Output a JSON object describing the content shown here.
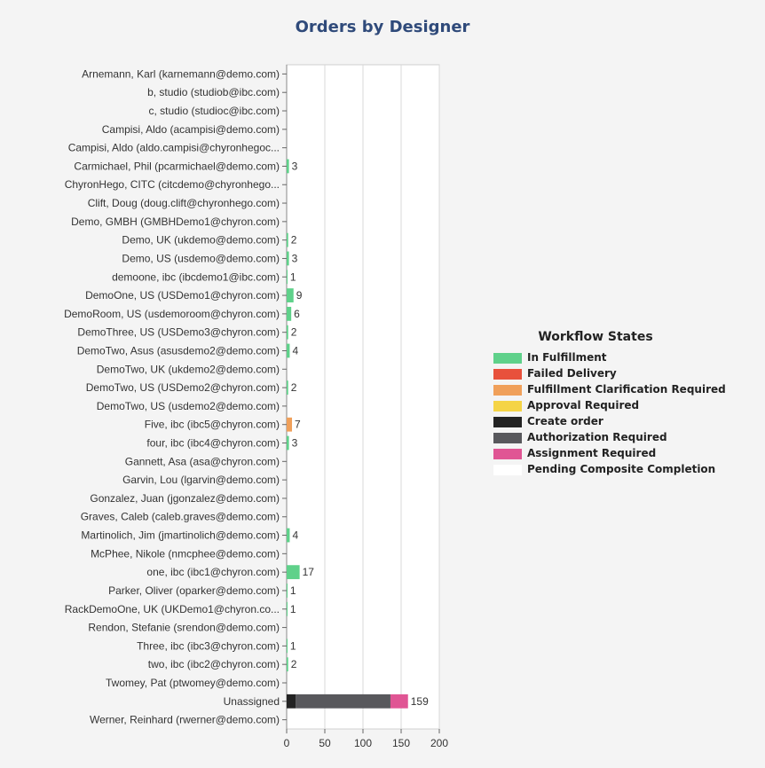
{
  "chart_data": {
    "type": "bar",
    "stacked": true,
    "orientation": "horizontal",
    "title": "Orders by Designer",
    "xlim": [
      0,
      200
    ],
    "xticks": [
      0,
      50,
      100,
      150,
      200
    ],
    "grid": true,
    "legend_placement": "right",
    "legend_title": "Workflow States",
    "categories": [
      "Arnemann, Karl (karnemann@demo.com)",
      "b, studio (studiob@ibc.com)",
      "c, studio (studioc@ibc.com)",
      "Campisi, Aldo (acampisi@demo.com)",
      "Campisi, Aldo (aldo.campisi@chyronhegoc...",
      "Carmichael, Phil (pcarmichael@demo.com)",
      "ChyronHego, CITC (citcdemo@chyronhego...",
      "Clift, Doug (doug.clift@chyronhego.com)",
      "Demo, GMBH (GMBHDemo1@chyron.com)",
      "Demo, UK (ukdemo@demo.com)",
      "Demo, US (usdemo@demo.com)",
      "demoone, ibc (ibcdemo1@ibc.com)",
      "DemoOne, US (USDemo1@chyron.com)",
      "DemoRoom, US (usdemoroom@chyron.com)",
      "DemoThree, US (USDemo3@chyron.com)",
      "DemoTwo, Asus (asusdemo2@demo.com)",
      "DemoTwo, UK (ukdemo2@demo.com)",
      "DemoTwo, US (USDemo2@chyron.com)",
      "DemoTwo, US (usdemo2@demo.com)",
      "Five, ibc (ibc5@chyron.com)",
      "four, ibc (ibc4@chyron.com)",
      "Gannett, Asa (asa@chyron.com)",
      "Garvin, Lou (lgarvin@demo.com)",
      "Gonzalez, Juan (jgonzalez@demo.com)",
      "Graves, Caleb (caleb.graves@demo.com)",
      "Martinolich, Jim (jmartinolich@demo.com)",
      "McPhee, Nikole (nmcphee@demo.com)",
      "one, ibc (ibc1@chyron.com)",
      "Parker, Oliver (oparker@demo.com)",
      "RackDemoOne, UK (UKDemo1@chyron.co...",
      "Rendon, Stefanie (srendon@demo.com)",
      "Three, ibc (ibc3@chyron.com)",
      "two, ibc (ibc2@chyron.com)",
      "Twomey, Pat (ptwomey@demo.com)",
      "Unassigned",
      "Werner, Reinhard (rwerner@demo.com)"
    ],
    "totals": [
      0,
      0,
      0,
      0,
      0,
      3,
      0,
      0,
      0,
      2,
      3,
      1,
      9,
      6,
      2,
      4,
      0,
      2,
      0,
      7,
      3,
      0,
      0,
      0,
      0,
      4,
      0,
      17,
      1,
      1,
      0,
      1,
      2,
      0,
      159,
      0
    ],
    "series": [
      {
        "name": "In Fulfillment",
        "color": "#5fd18a",
        "values": [
          0,
          0,
          0,
          0,
          0,
          3,
          0,
          0,
          0,
          2,
          3,
          1,
          9,
          6,
          2,
          4,
          0,
          2,
          0,
          0,
          3,
          0,
          0,
          0,
          0,
          4,
          0,
          17,
          1,
          1,
          0,
          1,
          2,
          0,
          0,
          0
        ]
      },
      {
        "name": "Failed Delivery",
        "color": "#e8513c",
        "values": [
          0,
          0,
          0,
          0,
          0,
          0,
          0,
          0,
          0,
          0,
          0,
          0,
          0,
          0,
          0,
          0,
          0,
          0,
          0,
          0,
          0,
          0,
          0,
          0,
          0,
          0,
          0,
          0,
          0,
          0,
          0,
          0,
          0,
          0,
          0,
          0
        ]
      },
      {
        "name": "Fulfillment Clarification Required",
        "color": "#f0a05a",
        "values": [
          0,
          0,
          0,
          0,
          0,
          0,
          0,
          0,
          0,
          0,
          0,
          0,
          0,
          0,
          0,
          0,
          0,
          0,
          0,
          7,
          0,
          0,
          0,
          0,
          0,
          0,
          0,
          0,
          0,
          0,
          0,
          0,
          0,
          0,
          0,
          0
        ]
      },
      {
        "name": "Approval Required",
        "color": "#f5d445",
        "values": [
          0,
          0,
          0,
          0,
          0,
          0,
          0,
          0,
          0,
          0,
          0,
          0,
          0,
          0,
          0,
          0,
          0,
          0,
          0,
          0,
          0,
          0,
          0,
          0,
          0,
          0,
          0,
          0,
          0,
          0,
          0,
          0,
          0,
          0,
          0,
          0
        ]
      },
      {
        "name": "Create order",
        "color": "#232323",
        "values": [
          0,
          0,
          0,
          0,
          0,
          0,
          0,
          0,
          0,
          0,
          0,
          0,
          0,
          0,
          0,
          0,
          0,
          0,
          0,
          0,
          0,
          0,
          0,
          0,
          0,
          0,
          0,
          0,
          0,
          0,
          0,
          0,
          0,
          0,
          12,
          0
        ]
      },
      {
        "name": "Authorization Required",
        "color": "#58585c",
        "values": [
          0,
          0,
          0,
          0,
          0,
          0,
          0,
          0,
          0,
          0,
          0,
          0,
          0,
          0,
          0,
          0,
          0,
          0,
          0,
          0,
          0,
          0,
          0,
          0,
          0,
          0,
          0,
          0,
          0,
          0,
          0,
          0,
          0,
          0,
          124,
          0
        ]
      },
      {
        "name": "Assignment Required",
        "color": "#e05594",
        "values": [
          0,
          0,
          0,
          0,
          0,
          0,
          0,
          0,
          0,
          0,
          0,
          0,
          0,
          0,
          0,
          0,
          0,
          0,
          0,
          0,
          0,
          0,
          0,
          0,
          0,
          0,
          0,
          0,
          0,
          0,
          0,
          0,
          0,
          0,
          23,
          0
        ]
      },
      {
        "name": "Pending Composite Completion",
        "color": "#ffffff",
        "values": [
          0,
          0,
          0,
          0,
          0,
          0,
          0,
          0,
          0,
          0,
          0,
          0,
          0,
          0,
          0,
          0,
          0,
          0,
          0,
          0,
          0,
          0,
          0,
          0,
          0,
          0,
          0,
          0,
          0,
          0,
          0,
          0,
          0,
          0,
          0,
          0
        ]
      }
    ]
  }
}
